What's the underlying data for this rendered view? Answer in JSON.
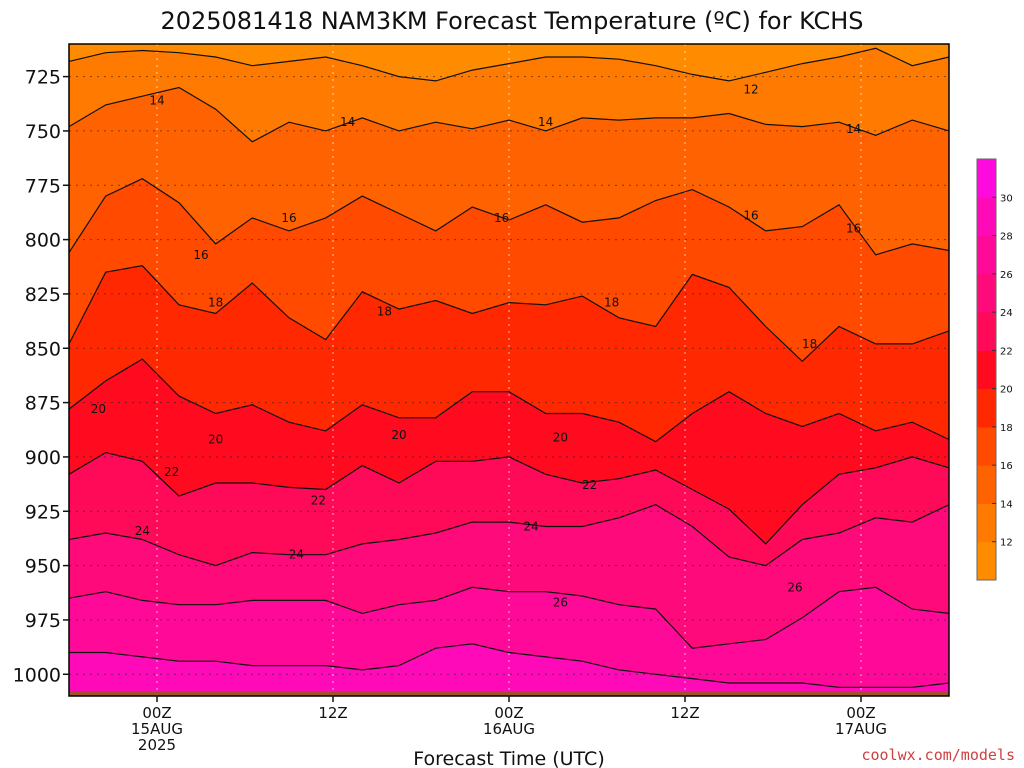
{
  "chart_data": {
    "type": "heatmap",
    "title": "2025081418 NAM3KM Forecast Temperature (ºC) for KCHS",
    "xlabel": "Forecast Time (UTC)",
    "ylabel": "",
    "credit": "coolwx.com/models",
    "y_axis": {
      "type": "pressure",
      "ticks": [
        725,
        750,
        775,
        800,
        825,
        850,
        875,
        900,
        925,
        950,
        975,
        1000
      ],
      "ylim": [
        1010,
        710
      ]
    },
    "x_axis": {
      "xlim": [
        -6,
        54
      ],
      "ticks": [
        {
          "hour": 0,
          "lines": [
            "00Z",
            "15AUG",
            "2025"
          ]
        },
        {
          "hour": 12,
          "lines": [
            "12Z"
          ]
        },
        {
          "hour": 24,
          "lines": [
            "00Z",
            "16AUG"
          ]
        },
        {
          "hour": 36,
          "lines": [
            "12Z"
          ]
        },
        {
          "hour": 48,
          "lines": [
            "00Z",
            "17AUG"
          ]
        }
      ]
    },
    "grid": true,
    "colorbar": {
      "levels": [
        10,
        12,
        14,
        16,
        18,
        20,
        22,
        24,
        26,
        28,
        30,
        32
      ],
      "labels": [
        12,
        14,
        16,
        18,
        20,
        22,
        24,
        26,
        28,
        30
      ],
      "colors": [
        "#ff8c00",
        "#ff7a00",
        "#ff6200",
        "#ff4a00",
        "#ff2800",
        "#ff0a1e",
        "#ff0a58",
        "#ff0a7a",
        "#ff0a98",
        "#ff0ab8",
        "#ff0ade"
      ]
    },
    "contours": [
      {
        "level": 12,
        "pressures": [
          718,
          714,
          713,
          714,
          716,
          720,
          718,
          716,
          720,
          725,
          727,
          722,
          719,
          716,
          716,
          717,
          720,
          724,
          727,
          723,
          719,
          716,
          712,
          720,
          716
        ]
      },
      {
        "level": 14,
        "pressures": [
          748,
          738,
          734,
          730,
          740,
          755,
          746,
          750,
          744,
          750,
          746,
          749,
          745,
          750,
          744,
          745,
          744,
          744,
          742,
          747,
          748,
          746,
          752,
          745,
          750
        ]
      },
      {
        "level": 16,
        "pressures": [
          806,
          780,
          772,
          783,
          802,
          790,
          796,
          790,
          780,
          788,
          796,
          785,
          791,
          784,
          792,
          790,
          782,
          777,
          785,
          796,
          794,
          784,
          807,
          802,
          805
        ]
      },
      {
        "level": 18,
        "pressures": [
          848,
          815,
          812,
          830,
          834,
          820,
          836,
          846,
          824,
          832,
          828,
          834,
          829,
          830,
          826,
          836,
          840,
          816,
          822,
          840,
          856,
          840,
          848,
          848,
          842
        ]
      },
      {
        "level": 20,
        "pressures": [
          878,
          865,
          855,
          872,
          880,
          876,
          884,
          888,
          876,
          882,
          882,
          870,
          870,
          880,
          880,
          884,
          893,
          880,
          870,
          880,
          886,
          880,
          888,
          884,
          892
        ]
      },
      {
        "level": 22,
        "pressures": [
          908,
          898,
          902,
          918,
          912,
          912,
          914,
          915,
          904,
          912,
          902,
          902,
          900,
          908,
          912,
          910,
          906,
          915,
          924,
          940,
          922,
          908,
          905,
          900,
          905
        ]
      },
      {
        "level": 24,
        "pressures": [
          938,
          935,
          938,
          945,
          950,
          944,
          945,
          945,
          940,
          938,
          935,
          930,
          930,
          932,
          932,
          928,
          922,
          932,
          946,
          950,
          938,
          935,
          928,
          930,
          922
        ]
      },
      {
        "level": 26,
        "pressures": [
          965,
          962,
          966,
          968,
          968,
          966,
          966,
          966,
          972,
          968,
          966,
          960,
          962,
          962,
          964,
          968,
          970,
          988,
          986,
          984,
          974,
          962,
          960,
          970,
          972
        ]
      },
      {
        "level": 28,
        "pressures": [
          990,
          990,
          992,
          994,
          994,
          996,
          996,
          996,
          998,
          996,
          988,
          986,
          990,
          992,
          994,
          998,
          1000,
          1002,
          1004,
          1004,
          1004,
          1006,
          1006,
          1006,
          1004
        ]
      }
    ],
    "contour_hours": [
      -6,
      -3.5,
      -1,
      1.5,
      4,
      6.5,
      9,
      11.5,
      14,
      16.5,
      19,
      21.5,
      24,
      26.5,
      29,
      31.5,
      34,
      36.5,
      39,
      41.5,
      44,
      46.5,
      49,
      51.5,
      54
    ],
    "contour_labels": [
      {
        "text": "12",
        "hour": 40.5,
        "p": 731
      },
      {
        "text": "14",
        "hour": 0,
        "p": 736
      },
      {
        "text": "14",
        "hour": 13,
        "p": 746
      },
      {
        "text": "14",
        "hour": 26.5,
        "p": 746
      },
      {
        "text": "14",
        "hour": 47.5,
        "p": 749
      },
      {
        "text": "16",
        "hour": 9,
        "p": 790
      },
      {
        "text": "16",
        "hour": 3,
        "p": 807
      },
      {
        "text": "16",
        "hour": 23.5,
        "p": 790
      },
      {
        "text": "16",
        "hour": 40.5,
        "p": 789
      },
      {
        "text": "16",
        "hour": 47.5,
        "p": 795
      },
      {
        "text": "18",
        "hour": 4,
        "p": 829
      },
      {
        "text": "18",
        "hour": 15.5,
        "p": 833
      },
      {
        "text": "18",
        "hour": 31,
        "p": 829
      },
      {
        "text": "18",
        "hour": 44.5,
        "p": 848
      },
      {
        "text": "20",
        "hour": -4,
        "p": 878
      },
      {
        "text": "20",
        "hour": 4,
        "p": 892
      },
      {
        "text": "20",
        "hour": 16.5,
        "p": 890
      },
      {
        "text": "20",
        "hour": 27.5,
        "p": 891
      },
      {
        "text": "22",
        "hour": 1,
        "p": 907
      },
      {
        "text": "22",
        "hour": 11,
        "p": 920
      },
      {
        "text": "22",
        "hour": 29.5,
        "p": 913
      },
      {
        "text": "24",
        "hour": -1,
        "p": 934
      },
      {
        "text": "24",
        "hour": 9.5,
        "p": 945
      },
      {
        "text": "24",
        "hour": 25.5,
        "p": 932
      },
      {
        "text": "26",
        "hour": 27.5,
        "p": 967
      },
      {
        "text": "26",
        "hour": 43.5,
        "p": 960
      }
    ],
    "ground": {
      "p_top": 1008,
      "color": "#a0522d"
    }
  }
}
